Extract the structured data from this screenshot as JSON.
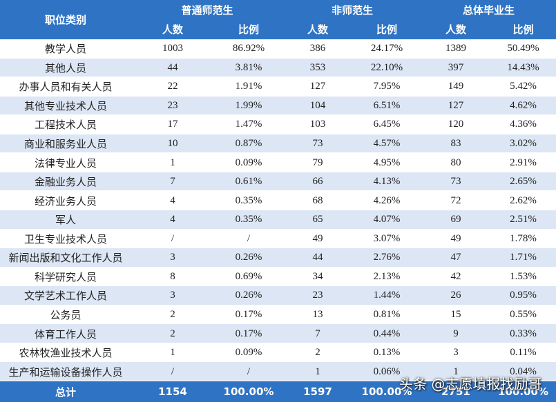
{
  "table": {
    "header": {
      "category": "职位类别",
      "groups": [
        "普通师范生",
        "非师范生",
        "总体毕业生"
      ],
      "subheaders": [
        "人数",
        "比例",
        "人数",
        "比例",
        "人数",
        "比例"
      ]
    },
    "rows": [
      [
        "教学人员",
        "1003",
        "86.92%",
        "386",
        "24.17%",
        "1389",
        "50.49%"
      ],
      [
        "其他人员",
        "44",
        "3.81%",
        "353",
        "22.10%",
        "397",
        "14.43%"
      ],
      [
        "办事人员和有关人员",
        "22",
        "1.91%",
        "127",
        "7.95%",
        "149",
        "5.42%"
      ],
      [
        "其他专业技术人员",
        "23",
        "1.99%",
        "104",
        "6.51%",
        "127",
        "4.62%"
      ],
      [
        "工程技术人员",
        "17",
        "1.47%",
        "103",
        "6.45%",
        "120",
        "4.36%"
      ],
      [
        "商业和服务业人员",
        "10",
        "0.87%",
        "73",
        "4.57%",
        "83",
        "3.02%"
      ],
      [
        "法律专业人员",
        "1",
        "0.09%",
        "79",
        "4.95%",
        "80",
        "2.91%"
      ],
      [
        "金融业务人员",
        "7",
        "0.61%",
        "66",
        "4.13%",
        "73",
        "2.65%"
      ],
      [
        "经济业务人员",
        "4",
        "0.35%",
        "68",
        "4.26%",
        "72",
        "2.62%"
      ],
      [
        "军人",
        "4",
        "0.35%",
        "65",
        "4.07%",
        "69",
        "2.51%"
      ],
      [
        "卫生专业技术人员",
        "/",
        "/",
        "49",
        "3.07%",
        "49",
        "1.78%"
      ],
      [
        "新闻出版和文化工作人员",
        "3",
        "0.26%",
        "44",
        "2.76%",
        "47",
        "1.71%"
      ],
      [
        "科学研究人员",
        "8",
        "0.69%",
        "34",
        "2.13%",
        "42",
        "1.53%"
      ],
      [
        "文学艺术工作人员",
        "3",
        "0.26%",
        "23",
        "1.44%",
        "26",
        "0.95%"
      ],
      [
        "公务员",
        "2",
        "0.17%",
        "13",
        "0.81%",
        "15",
        "0.55%"
      ],
      [
        "体育工作人员",
        "2",
        "0.17%",
        "7",
        "0.44%",
        "9",
        "0.33%"
      ],
      [
        "农林牧渔业技术人员",
        "1",
        "0.09%",
        "2",
        "0.13%",
        "3",
        "0.11%"
      ],
      [
        "生产和运输设备操作人员",
        "/",
        "/",
        "1",
        "0.06%",
        "1",
        "0.04%"
      ]
    ],
    "total": [
      "总计",
      "1154",
      "100.00%",
      "1597",
      "100.00%",
      "2751",
      "100.00%"
    ]
  },
  "watermark": "头条 @志愿填报找励哥"
}
